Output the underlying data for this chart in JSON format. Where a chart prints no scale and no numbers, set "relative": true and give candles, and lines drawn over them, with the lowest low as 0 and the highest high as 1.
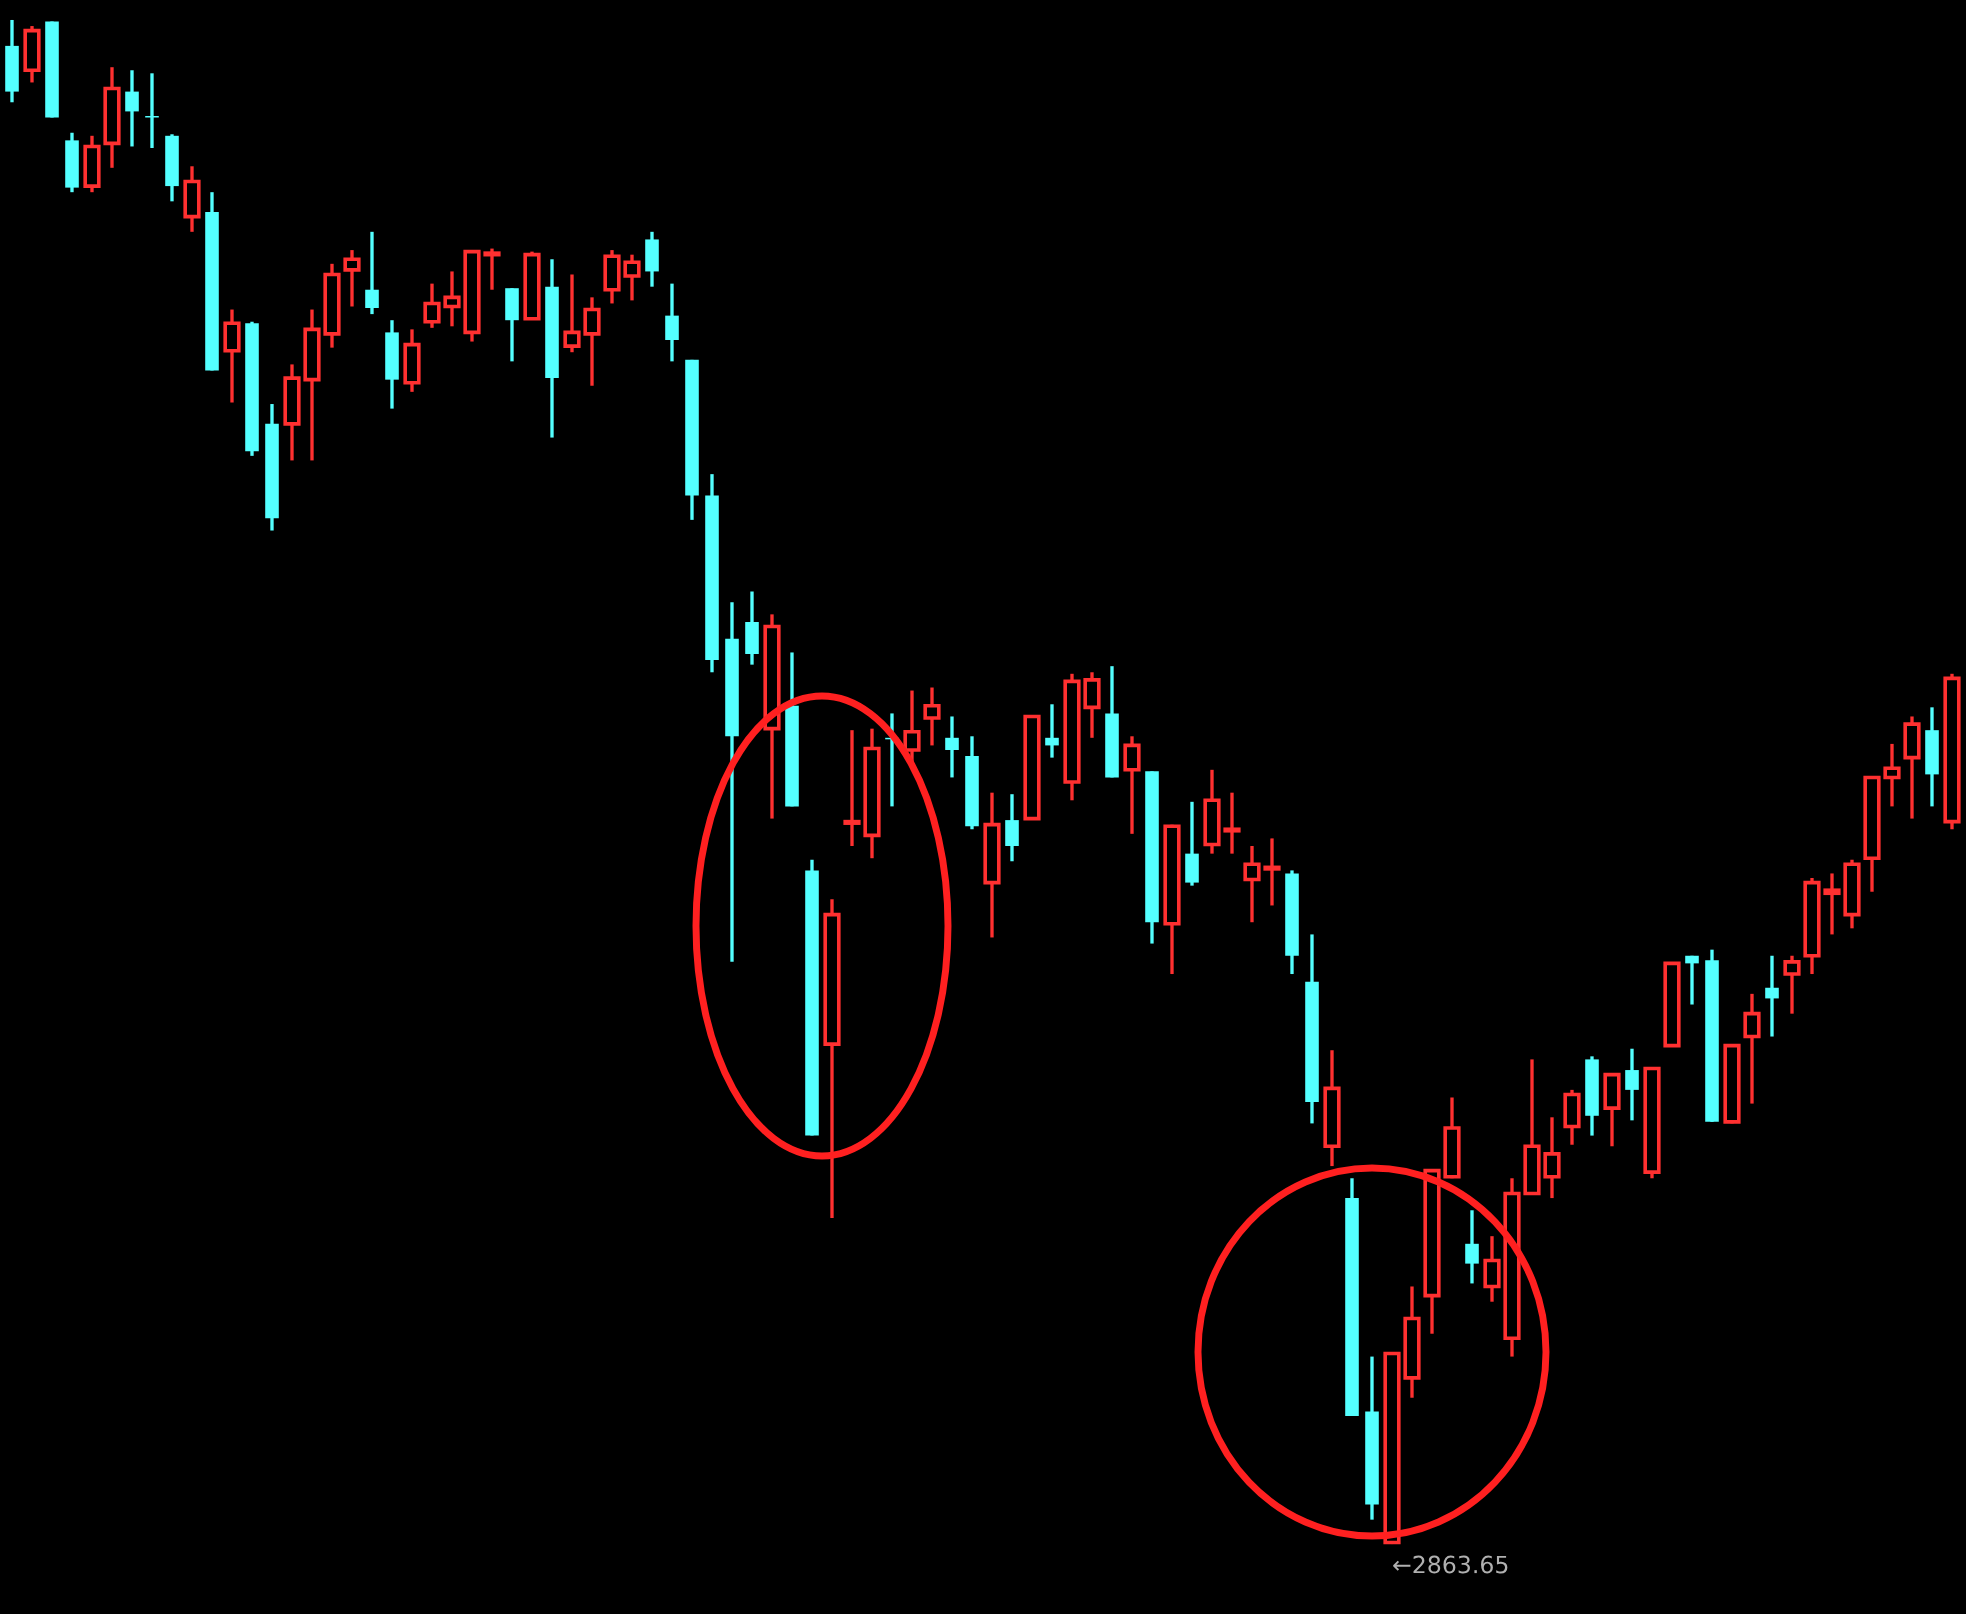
{
  "chart_data": {
    "type": "candlestick",
    "relative": true,
    "categories": [
      null,
      null,
      null,
      null,
      null,
      null,
      null,
      null,
      null,
      null,
      null,
      null,
      null,
      null,
      null,
      null,
      null,
      null,
      null,
      null,
      null,
      null,
      null,
      null,
      null,
      null,
      null,
      null,
      null,
      null,
      null,
      null,
      null,
      null,
      null,
      null,
      null,
      null,
      null,
      null,
      null,
      null,
      null,
      null,
      null,
      null,
      null,
      null,
      null,
      null,
      null,
      null,
      null,
      null,
      null,
      null,
      null,
      null,
      null,
      null,
      null,
      null,
      null,
      null,
      null,
      null,
      null,
      null,
      null,
      null,
      null,
      null,
      null,
      null,
      null,
      null,
      null,
      null,
      null,
      null,
      null,
      null,
      null,
      null,
      null,
      null,
      null,
      null,
      null,
      null,
      null,
      null,
      null,
      null,
      null,
      null,
      null,
      null
    ],
    "ohlc": [
      [
        0.983,
        1,
        0.946,
        0.953
      ],
      [
        0.967,
        0.996,
        0.959,
        0.993
      ],
      [
        0.999,
        0.999,
        0.936,
        0.936
      ],
      [
        0.921,
        0.926,
        0.887,
        0.89
      ],
      [
        0.891,
        0.924,
        0.887,
        0.917
      ],
      [
        0.919,
        0.969,
        0.903,
        0.955
      ],
      [
        0.953,
        0.967,
        0.917,
        0.94
      ],
      [
        0.937,
        0.965,
        0.916,
        0.936
      ],
      [
        0.924,
        0.925,
        0.881,
        0.891
      ],
      [
        0.871,
        0.904,
        0.861,
        0.894
      ],
      [
        0.874,
        0.887,
        0.77,
        0.77
      ],
      [
        0.783,
        0.81,
        0.749,
        0.801
      ],
      [
        0.801,
        0.802,
        0.714,
        0.717
      ],
      [
        0.735,
        0.748,
        0.665,
        0.673
      ],
      [
        0.735,
        0.774,
        0.711,
        0.765
      ],
      [
        0.764,
        0.81,
        0.711,
        0.797
      ],
      [
        0.794,
        0.84,
        0.785,
        0.833
      ],
      [
        0.836,
        0.849,
        0.812,
        0.843
      ],
      [
        0.823,
        0.861,
        0.807,
        0.811
      ],
      [
        0.795,
        0.803,
        0.745,
        0.764
      ],
      [
        0.762,
        0.797,
        0.756,
        0.787
      ],
      [
        0.802,
        0.827,
        0.798,
        0.814
      ],
      [
        0.812,
        0.835,
        0.799,
        0.818
      ],
      [
        0.795,
        0.848,
        0.789,
        0.848
      ],
      [
        0.846,
        0.85,
        0.823,
        0.847
      ],
      [
        0.824,
        0.824,
        0.776,
        0.803
      ],
      [
        0.804,
        0.848,
        0.804,
        0.846
      ],
      [
        0.825,
        0.843,
        0.726,
        0.765
      ],
      [
        0.786,
        0.833,
        0.782,
        0.795
      ],
      [
        0.794,
        0.818,
        0.76,
        0.81
      ],
      [
        0.823,
        0.849,
        0.814,
        0.845
      ],
      [
        0.832,
        0.846,
        0.816,
        0.841
      ],
      [
        0.856,
        0.861,
        0.825,
        0.835
      ],
      [
        0.806,
        0.827,
        0.776,
        0.79
      ],
      [
        0.777,
        0.777,
        0.672,
        0.688
      ],
      [
        0.688,
        0.702,
        0.572,
        0.58
      ],
      [
        0.594,
        0.618,
        0.382,
        0.53
      ],
      [
        0.605,
        0.625,
        0.577,
        0.584
      ],
      [
        0.535,
        0.61,
        0.476,
        0.602
      ],
      [
        0.55,
        0.585,
        0.484,
        0.484
      ],
      [
        0.442,
        0.449,
        0.268,
        0.268
      ],
      [
        0.328,
        0.423,
        0.214,
        0.413
      ],
      [
        0.473,
        0.534,
        0.458,
        0.474
      ],
      [
        0.465,
        0.535,
        0.45,
        0.522
      ],
      [
        0.529,
        0.545,
        0.484,
        0.528
      ],
      [
        0.521,
        0.56,
        0.51,
        0.533
      ],
      [
        0.542,
        0.562,
        0.524,
        0.55
      ],
      [
        0.529,
        0.543,
        0.503,
        0.521
      ],
      [
        0.517,
        0.53,
        0.469,
        0.471
      ],
      [
        0.434,
        0.493,
        0.398,
        0.472
      ],
      [
        0.475,
        0.492,
        0.448,
        0.458
      ],
      [
        0.476,
        0.543,
        0.476,
        0.543
      ],
      [
        0.529,
        0.551,
        0.516,
        0.524
      ],
      [
        0.5,
        0.571,
        0.488,
        0.566
      ],
      [
        0.549,
        0.572,
        0.529,
        0.567
      ],
      [
        0.545,
        0.576,
        0.503,
        0.503
      ],
      [
        0.508,
        0.53,
        0.466,
        0.524
      ],
      [
        0.507,
        0.507,
        0.394,
        0.408
      ],
      [
        0.407,
        0.472,
        0.374,
        0.471
      ],
      [
        0.453,
        0.487,
        0.432,
        0.434
      ],
      [
        0.459,
        0.508,
        0.453,
        0.488
      ],
      [
        0.468,
        0.493,
        0.453,
        0.469
      ],
      [
        0.436,
        0.458,
        0.408,
        0.446
      ],
      [
        0.443,
        0.463,
        0.419,
        0.444
      ],
      [
        0.44,
        0.442,
        0.374,
        0.386
      ],
      [
        0.369,
        0.4,
        0.276,
        0.29
      ],
      [
        0.261,
        0.324,
        0.248,
        0.299
      ],
      [
        0.227,
        0.24,
        0.084,
        0.084
      ],
      [
        0.087,
        0.123,
        0.016,
        0.026
      ],
      [
        0.001,
        0.125,
        0,
        0.125
      ],
      [
        0.109,
        0.169,
        0.096,
        0.148
      ],
      [
        0.163,
        0.245,
        0.138,
        0.245
      ],
      [
        0.241,
        0.293,
        0.24,
        0.273
      ],
      [
        0.197,
        0.219,
        0.171,
        0.184
      ],
      [
        0.169,
        0.202,
        0.159,
        0.186
      ],
      [
        0.135,
        0.24,
        0.123,
        0.23
      ],
      [
        0.23,
        0.318,
        0.23,
        0.261
      ],
      [
        0.241,
        0.28,
        0.227,
        0.256
      ],
      [
        0.274,
        0.298,
        0.262,
        0.295
      ],
      [
        0.318,
        0.32,
        0.268,
        0.281
      ],
      [
        0.286,
        0.308,
        0.261,
        0.308
      ],
      [
        0.311,
        0.325,
        0.278,
        0.298
      ],
      [
        0.244,
        0.312,
        0.24,
        0.312
      ],
      [
        0.327,
        0.381,
        0.327,
        0.381
      ],
      [
        0.386,
        0.386,
        0.354,
        0.381
      ],
      [
        0.383,
        0.39,
        0.277,
        0.277
      ],
      [
        0.277,
        0.327,
        0.276,
        0.327
      ],
      [
        0.333,
        0.361,
        0.289,
        0.348
      ],
      [
        0.365,
        0.386,
        0.333,
        0.358
      ],
      [
        0.374,
        0.386,
        0.348,
        0.382
      ],
      [
        0.386,
        0.437,
        0.374,
        0.434
      ],
      [
        0.427,
        0.44,
        0.4,
        0.429
      ],
      [
        0.413,
        0.449,
        0.404,
        0.446
      ],
      [
        0.45,
        0.503,
        0.428,
        0.503
      ],
      [
        0.503,
        0.525,
        0.484,
        0.509
      ],
      [
        0.516,
        0.543,
        0.476,
        0.538
      ],
      [
        0.534,
        0.549,
        0.484,
        0.505
      ],
      [
        0.474,
        0.571,
        0.469,
        0.568
      ]
    ],
    "colors": [
      "#54ffff",
      "#ff3030",
      "#54ffff",
      "#54ffff",
      "#ff3030",
      "#ff3030",
      "#54ffff",
      "#54ffff",
      "#54ffff",
      "#ff3030",
      "#54ffff",
      "#ff3030",
      "#54ffff",
      "#54ffff",
      "#ff3030",
      "#ff3030",
      "#ff3030",
      "#ff3030",
      "#54ffff",
      "#54ffff",
      "#ff3030",
      "#ff3030",
      "#ff3030",
      "#ff3030",
      "#ff3030",
      "#54ffff",
      "#ff3030",
      "#54ffff",
      "#ff3030",
      "#ff3030",
      "#ff3030",
      "#ff3030",
      "#54ffff",
      "#54ffff",
      "#54ffff",
      "#54ffff",
      "#54ffff",
      "#54ffff",
      "#ff3030",
      "#54ffff",
      "#54ffff",
      "#ff3030",
      "#ff3030",
      "#ff3030",
      "#54ffff",
      "#ff3030",
      "#ff3030",
      "#54ffff",
      "#54ffff",
      "#ff3030",
      "#54ffff",
      "#ff3030",
      "#54ffff",
      "#ff3030",
      "#ff3030",
      "#54ffff",
      "#ff3030",
      "#54ffff",
      "#ff3030",
      "#54ffff",
      "#ff3030",
      "#ff3030",
      "#ff3030",
      "#ff3030",
      "#54ffff",
      "#54ffff",
      "#ff3030",
      "#54ffff",
      "#54ffff",
      "#ff3030",
      "#ff3030",
      "#ff3030",
      "#ff3030",
      "#54ffff",
      "#ff3030",
      "#ff3030",
      "#ff3030",
      "#ff3030",
      "#ff3030",
      "#54ffff",
      "#ff3030",
      "#54ffff",
      "#ff3030",
      "#ff3030",
      "#54ffff",
      "#54ffff",
      "#ff3030",
      "#ff3030",
      "#54ffff",
      "#ff3030",
      "#ff3030",
      "#ff3030",
      "#ff3030",
      "#ff3030",
      "#ff3030",
      "#ff3030",
      "#54ffff",
      "#ff3030"
    ],
    "annotations": [
      "←2863.65"
    ]
  }
}
